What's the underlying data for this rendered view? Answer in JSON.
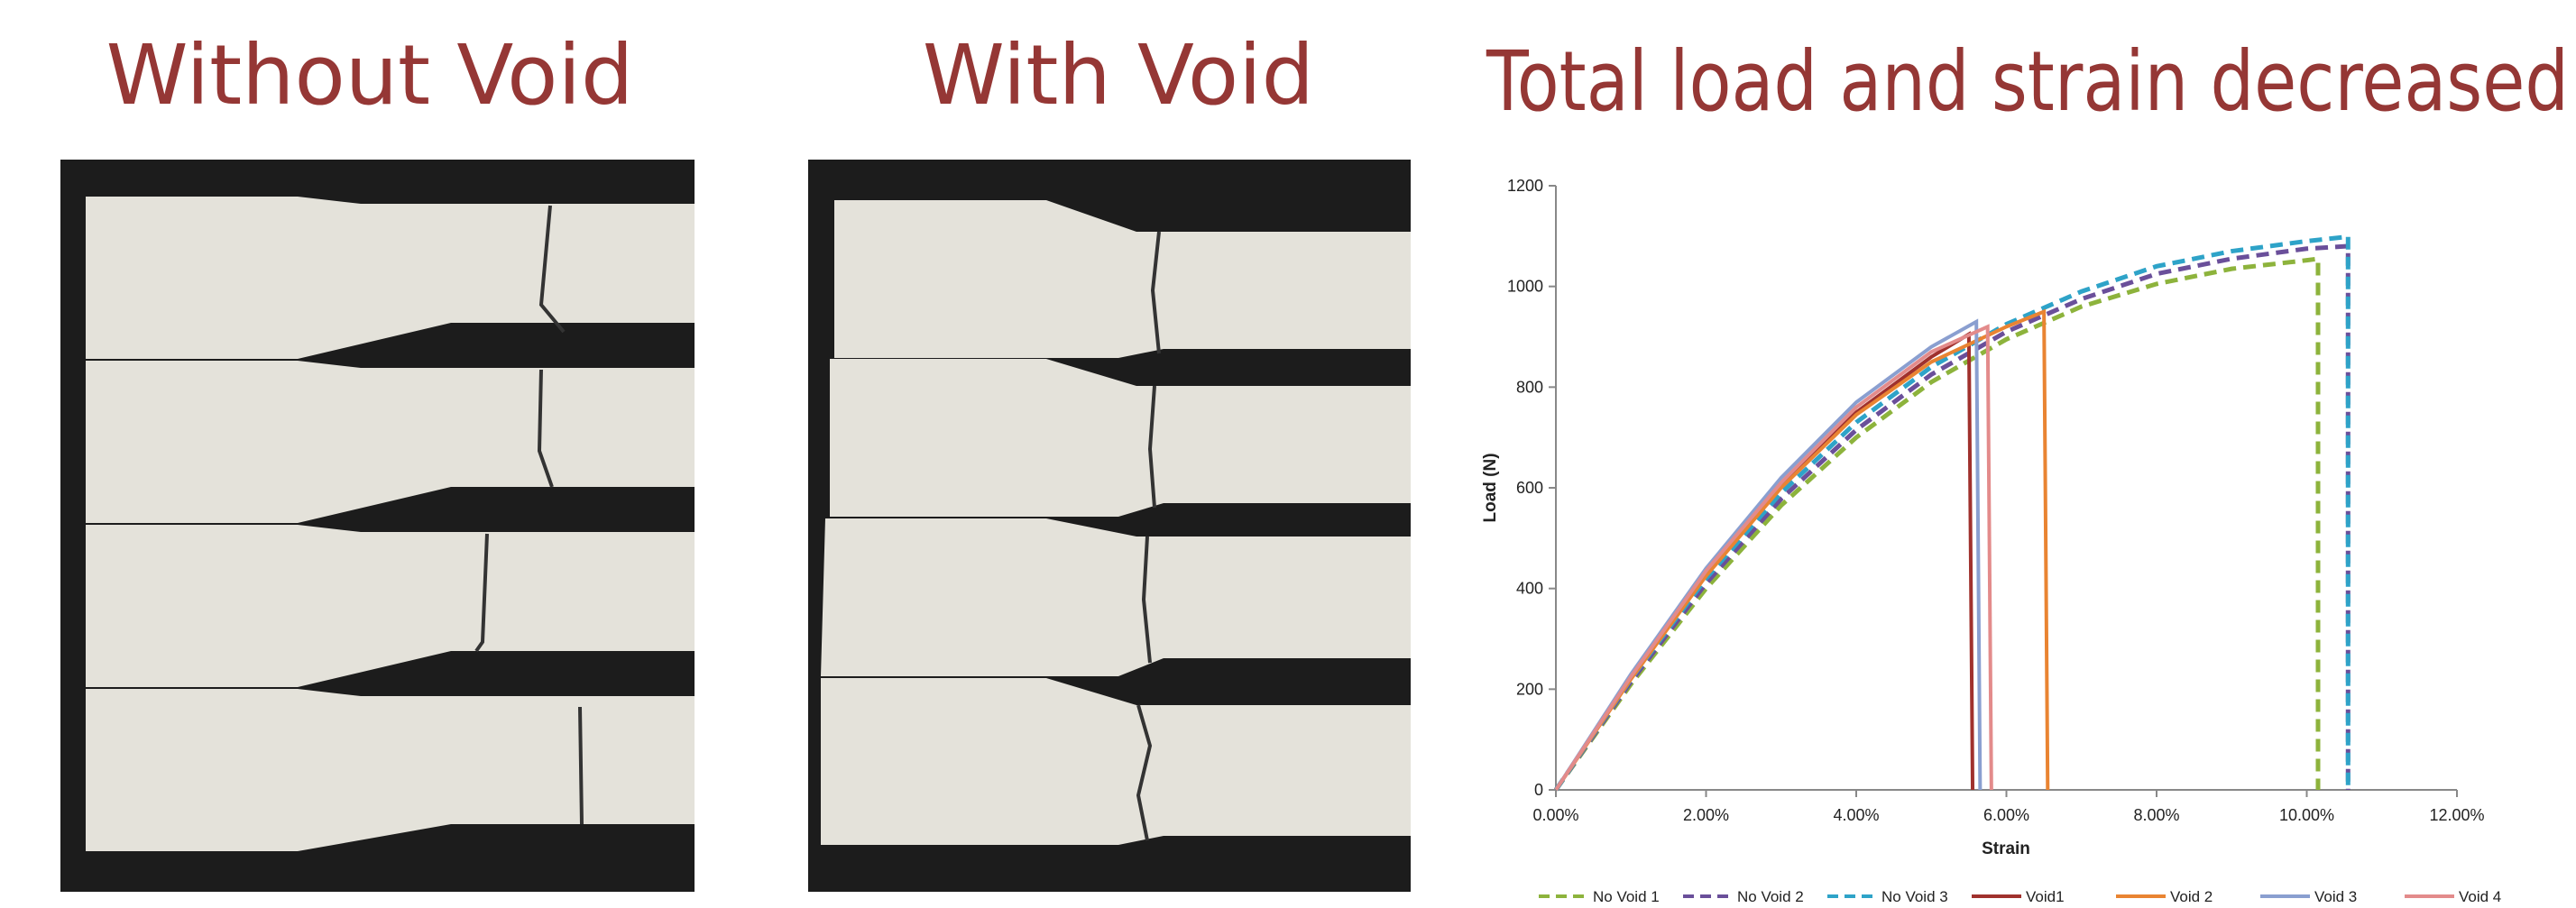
{
  "panels": [
    {
      "title": "Without Void"
    },
    {
      "title": "With Void"
    }
  ],
  "chart_data": {
    "type": "line",
    "title": "Total load and strain decreased",
    "x_label": "Strain",
    "y_label": "Load (N)",
    "xlim": [
      0,
      12
    ],
    "ylim": [
      0,
      1200
    ],
    "xticks": [
      {
        "value": 0,
        "label": "0.00%"
      },
      {
        "value": 2,
        "label": "2.00%"
      },
      {
        "value": 4,
        "label": "4.00%"
      },
      {
        "value": 6,
        "label": "6.00%"
      },
      {
        "value": 8,
        "label": "8.00%"
      },
      {
        "value": 10,
        "label": "10.00%"
      },
      {
        "value": 12,
        "label": "12.00%"
      }
    ],
    "yticks": [
      0,
      200,
      400,
      600,
      800,
      1000,
      1200
    ],
    "legend": "bottom",
    "series": [
      {
        "name": "No Void 1",
        "color": "#8db33c",
        "style": "dashed",
        "x": [
          0,
          1,
          2,
          3,
          4,
          5,
          6,
          7,
          8,
          9,
          10,
          10.15,
          10.15
        ],
        "values": [
          0,
          210,
          400,
          565,
          700,
          810,
          895,
          960,
          1005,
          1035,
          1052,
          1055,
          0
        ]
      },
      {
        "name": "No Void 2",
        "color": "#6a4f9a",
        "style": "dashed",
        "x": [
          0,
          1,
          2,
          3,
          4,
          5,
          6,
          7,
          8,
          9,
          10,
          10.55,
          10.55
        ],
        "values": [
          0,
          215,
          410,
          578,
          715,
          825,
          910,
          975,
          1025,
          1055,
          1075,
          1080,
          0
        ]
      },
      {
        "name": "No Void 3",
        "color": "#2ea3c8",
        "style": "dashed",
        "x": [
          0,
          1,
          2,
          3,
          4,
          5,
          6,
          7,
          8,
          9,
          10,
          10.5,
          10.55,
          10.55
        ],
        "values": [
          0,
          220,
          420,
          590,
          730,
          840,
          925,
          990,
          1040,
          1070,
          1090,
          1098,
          1100,
          0
        ]
      },
      {
        "name": "Void1",
        "color": "#a0312d",
        "style": "solid",
        "x": [
          0,
          1,
          2,
          3,
          4,
          5,
          5.5,
          5.55
        ],
        "values": [
          0,
          225,
          430,
          605,
          750,
          860,
          905,
          0
        ]
      },
      {
        "name": "Void 2",
        "color": "#e98432",
        "style": "solid",
        "x": [
          0,
          1,
          2,
          3,
          4,
          5,
          6,
          6.5,
          6.55
        ],
        "values": [
          0,
          220,
          425,
          600,
          745,
          850,
          920,
          950,
          0
        ]
      },
      {
        "name": "Void 3",
        "color": "#8a9fd0",
        "style": "solid",
        "x": [
          0,
          1,
          2,
          3,
          4,
          5,
          5.6,
          5.65
        ],
        "values": [
          0,
          230,
          440,
          620,
          770,
          880,
          930,
          0
        ]
      },
      {
        "name": "Void 4",
        "color": "#e38b8b",
        "style": "solid",
        "x": [
          0,
          1,
          2,
          3,
          4,
          5,
          5.75,
          5.8
        ],
        "values": [
          0,
          225,
          435,
          610,
          760,
          870,
          920,
          0
        ]
      }
    ]
  }
}
